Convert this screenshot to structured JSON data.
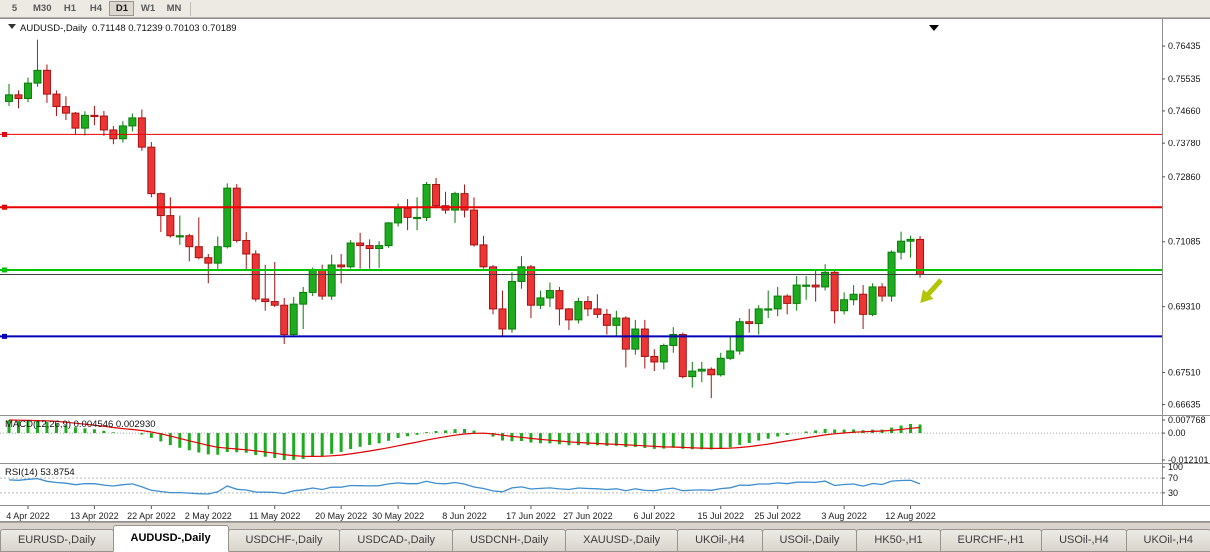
{
  "toolbar": {
    "timeframes": [
      "5",
      "M30",
      "H1",
      "H4",
      "D1",
      "W1",
      "MN"
    ],
    "active_timeframe": "D1"
  },
  "chart": {
    "symbol_label": "AUDUSD-,Daily",
    "ohlc_label": "0.71148 0.71239 0.70103 0.70189",
    "price_axis_ticks": [
      "0.76435",
      "0.75535",
      "0.74660",
      "0.73780",
      "0.72860",
      "0.71085",
      "0.69310",
      "0.67510",
      "0.66635"
    ],
    "colors": {
      "up": "#1fab1f",
      "up_border": "#077d07",
      "down": "#ec3535",
      "down_border": "#a81212",
      "macd_hist": "#1fab1f",
      "macd_signal": "#e00000",
      "rsi_line": "#3e8ed0",
      "current_price_line": "#404040"
    }
  },
  "chart_data": {
    "type": "candlestick",
    "symbol": "AUDUSD",
    "period": "Daily",
    "y_range": [
      0.6635,
      0.772
    ],
    "candles_ohlc": [
      [
        0.7492,
        0.754,
        0.748,
        0.751
      ],
      [
        0.751,
        0.7522,
        0.7473,
        0.75
      ],
      [
        0.75,
        0.7557,
        0.749,
        0.7542
      ],
      [
        0.7542,
        0.7661,
        0.7532,
        0.7577
      ],
      [
        0.7577,
        0.7593,
        0.7488,
        0.7512
      ],
      [
        0.7512,
        0.7522,
        0.7452,
        0.7478
      ],
      [
        0.7478,
        0.7506,
        0.7441,
        0.746
      ],
      [
        0.746,
        0.7463,
        0.74,
        0.7419
      ],
      [
        0.7419,
        0.7465,
        0.7399,
        0.7454
      ],
      [
        0.7454,
        0.748,
        0.7427,
        0.7452
      ],
      [
        0.7452,
        0.7466,
        0.7398,
        0.7414
      ],
      [
        0.7414,
        0.7425,
        0.7375,
        0.739
      ],
      [
        0.739,
        0.7438,
        0.738,
        0.7425
      ],
      [
        0.7425,
        0.7459,
        0.741,
        0.7447
      ],
      [
        0.7447,
        0.747,
        0.7357,
        0.7367
      ],
      [
        0.7367,
        0.7381,
        0.723,
        0.724
      ],
      [
        0.724,
        0.7243,
        0.7135,
        0.718
      ],
      [
        0.718,
        0.723,
        0.712,
        0.7125
      ],
      [
        0.7125,
        0.718,
        0.71,
        0.7125
      ],
      [
        0.7125,
        0.713,
        0.7055,
        0.7095
      ],
      [
        0.7095,
        0.7175,
        0.706,
        0.7065
      ],
      [
        0.7065,
        0.7075,
        0.6995,
        0.705
      ],
      [
        0.705,
        0.7123,
        0.7029,
        0.7095
      ],
      [
        0.7095,
        0.7268,
        0.709,
        0.7255
      ],
      [
        0.7255,
        0.7266,
        0.7106,
        0.7112
      ],
      [
        0.7112,
        0.7135,
        0.703,
        0.7075
      ],
      [
        0.7075,
        0.7085,
        0.6945,
        0.6952
      ],
      [
        0.6952,
        0.7045,
        0.692,
        0.6945
      ],
      [
        0.6945,
        0.7053,
        0.693,
        0.6935
      ],
      [
        0.6935,
        0.6955,
        0.6829,
        0.6855
      ],
      [
        0.6855,
        0.6958,
        0.685,
        0.6938
      ],
      [
        0.6938,
        0.6985,
        0.687,
        0.697
      ],
      [
        0.697,
        0.7038,
        0.696,
        0.703
      ],
      [
        0.703,
        0.7046,
        0.695,
        0.696
      ],
      [
        0.696,
        0.7073,
        0.695,
        0.7045
      ],
      [
        0.7045,
        0.7075,
        0.6995,
        0.704
      ],
      [
        0.704,
        0.7113,
        0.7035,
        0.7105
      ],
      [
        0.7105,
        0.7133,
        0.7035,
        0.7098
      ],
      [
        0.7098,
        0.7115,
        0.7035,
        0.709
      ],
      [
        0.709,
        0.711,
        0.7037,
        0.7098
      ],
      [
        0.7098,
        0.7162,
        0.7092,
        0.716
      ],
      [
        0.716,
        0.7213,
        0.715,
        0.72
      ],
      [
        0.72,
        0.7225,
        0.714,
        0.7175
      ],
      [
        0.7175,
        0.723,
        0.714,
        0.7175
      ],
      [
        0.7175,
        0.7272,
        0.7165,
        0.7265
      ],
      [
        0.7265,
        0.7283,
        0.72,
        0.7207
      ],
      [
        0.7207,
        0.7245,
        0.7185,
        0.7195
      ],
      [
        0.7195,
        0.7245,
        0.716,
        0.724
      ],
      [
        0.724,
        0.7265,
        0.7175,
        0.7195
      ],
      [
        0.7195,
        0.723,
        0.7095,
        0.71
      ],
      [
        0.71,
        0.7125,
        0.7035,
        0.704
      ],
      [
        0.704,
        0.7045,
        0.691,
        0.6925
      ],
      [
        0.6925,
        0.6975,
        0.685,
        0.687
      ],
      [
        0.687,
        0.7025,
        0.686,
        0.7
      ],
      [
        0.7,
        0.7069,
        0.698,
        0.704
      ],
      [
        0.704,
        0.7045,
        0.69,
        0.6935
      ],
      [
        0.6935,
        0.6975,
        0.6925,
        0.6955
      ],
      [
        0.6955,
        0.6997,
        0.693,
        0.6975
      ],
      [
        0.6975,
        0.6985,
        0.688,
        0.6925
      ],
      [
        0.6925,
        0.6927,
        0.6867,
        0.6895
      ],
      [
        0.6895,
        0.6955,
        0.6885,
        0.6945
      ],
      [
        0.6945,
        0.696,
        0.6905,
        0.6925
      ],
      [
        0.6925,
        0.6965,
        0.69,
        0.691
      ],
      [
        0.691,
        0.6925,
        0.6855,
        0.688
      ],
      [
        0.688,
        0.692,
        0.685,
        0.69
      ],
      [
        0.69,
        0.6905,
        0.6765,
        0.6815
      ],
      [
        0.6815,
        0.6895,
        0.68,
        0.687
      ],
      [
        0.687,
        0.6895,
        0.6762,
        0.6795
      ],
      [
        0.6795,
        0.6815,
        0.6755,
        0.678
      ],
      [
        0.678,
        0.683,
        0.676,
        0.6825
      ],
      [
        0.6825,
        0.6875,
        0.6805,
        0.6855
      ],
      [
        0.6855,
        0.686,
        0.6735,
        0.674
      ],
      [
        0.674,
        0.678,
        0.671,
        0.6755
      ],
      [
        0.6755,
        0.678,
        0.6725,
        0.676
      ],
      [
        0.676,
        0.6765,
        0.6681,
        0.6745
      ],
      [
        0.6745,
        0.6805,
        0.674,
        0.679
      ],
      [
        0.679,
        0.685,
        0.6785,
        0.681
      ],
      [
        0.681,
        0.69,
        0.68,
        0.689
      ],
      [
        0.689,
        0.6925,
        0.686,
        0.6885
      ],
      [
        0.6885,
        0.6935,
        0.6855,
        0.6925
      ],
      [
        0.6925,
        0.6975,
        0.69,
        0.6925
      ],
      [
        0.6925,
        0.6985,
        0.6905,
        0.696
      ],
      [
        0.696,
        0.6965,
        0.691,
        0.694
      ],
      [
        0.694,
        0.7015,
        0.692,
        0.699
      ],
      [
        0.699,
        0.7015,
        0.695,
        0.699
      ],
      [
        0.699,
        0.7032,
        0.6945,
        0.6985
      ],
      [
        0.6985,
        0.7047,
        0.6975,
        0.7025
      ],
      [
        0.7025,
        0.703,
        0.6885,
        0.692
      ],
      [
        0.692,
        0.697,
        0.691,
        0.695
      ],
      [
        0.695,
        0.699,
        0.6935,
        0.6965
      ],
      [
        0.6965,
        0.699,
        0.687,
        0.691
      ],
      [
        0.691,
        0.6995,
        0.6905,
        0.6985
      ],
      [
        0.6985,
        0.6995,
        0.6945,
        0.696
      ],
      [
        0.696,
        0.7085,
        0.6945,
        0.708
      ],
      [
        0.708,
        0.7136,
        0.706,
        0.711
      ],
      [
        0.711,
        0.7125,
        0.7065,
        0.7115
      ],
      [
        0.71148,
        0.71239,
        0.70103,
        0.70189
      ]
    ],
    "x_axis_labels": [
      {
        "label": "4 Apr 2022",
        "index": 2
      },
      {
        "label": "13 Apr 2022",
        "index": 9
      },
      {
        "label": "22 Apr 2022",
        "index": 15
      },
      {
        "label": "2 May 2022",
        "index": 21
      },
      {
        "label": "11 May 2022",
        "index": 28
      },
      {
        "label": "20 May 2022",
        "index": 35
      },
      {
        "label": "30 May 2022",
        "index": 41
      },
      {
        "label": "8 Jun 2022",
        "index": 48
      },
      {
        "label": "17 Jun 2022",
        "index": 55
      },
      {
        "label": "27 Jun 2022",
        "index": 61
      },
      {
        "label": "6 Jul 2022",
        "index": 68
      },
      {
        "label": "15 Jul 2022",
        "index": 75
      },
      {
        "label": "25 Jul 2022",
        "index": 81
      },
      {
        "label": "3 Aug 2022",
        "index": 88
      },
      {
        "label": "12 Aug 2022",
        "index": 95
      }
    ],
    "levels": [
      {
        "name": "resistance-upper",
        "price": 0.74018,
        "label": "0.74018",
        "color": "#e80000",
        "width": 1
      },
      {
        "name": "resistance-lower",
        "price": 0.72029,
        "label": "0.72029",
        "color": "#e80000",
        "width": 2
      },
      {
        "name": "support-green",
        "price": 0.70314,
        "label": "0.70314",
        "color": "#00c400",
        "width": 2
      },
      {
        "name": "support-blue",
        "price": 0.68499,
        "label": "0.68499",
        "color": "#0000b4",
        "width": 2
      }
    ],
    "current_price": {
      "value": 0.70189,
      "label": "0.70189",
      "color": "#7e7e7e"
    },
    "objects": [
      {
        "type": "arrow-down-right",
        "color": "#b2c500"
      },
      {
        "type": "triangle-marker",
        "color": "#000000"
      }
    ],
    "indicators": {
      "macd": {
        "label": "MACD(12,26,9) 0.004546 0.002930",
        "params": [
          12,
          26,
          9
        ],
        "value": 0.004546,
        "signal": 0.00293,
        "axis_labels": [
          "0.007768",
          "0.00",
          "-0.012101"
        ]
      },
      "rsi": {
        "label": "RSI(14) 53.8754",
        "period": 14,
        "value": 53.8754,
        "axis_labels": [
          "100",
          "70",
          "30"
        ],
        "levels": [
          70,
          30
        ]
      }
    }
  },
  "tabs": [
    {
      "label": "EURUSD-,Daily",
      "active": false
    },
    {
      "label": "AUDUSD-,Daily",
      "active": true
    },
    {
      "label": "USDCHF-,Daily",
      "active": false
    },
    {
      "label": "USDCAD-,Daily",
      "active": false
    },
    {
      "label": "USDCNH-,Daily",
      "active": false
    },
    {
      "label": "XAUUSD-,Daily",
      "active": false
    },
    {
      "label": "UKOil-,H4",
      "active": false
    },
    {
      "label": "USOil-,Daily",
      "active": false
    },
    {
      "label": "HK50-,H1",
      "active": false
    },
    {
      "label": "EURCHF-,H1",
      "active": false
    },
    {
      "label": "USOil-,H4",
      "active": false
    },
    {
      "label": "UKOil-,H4",
      "active": false
    }
  ]
}
